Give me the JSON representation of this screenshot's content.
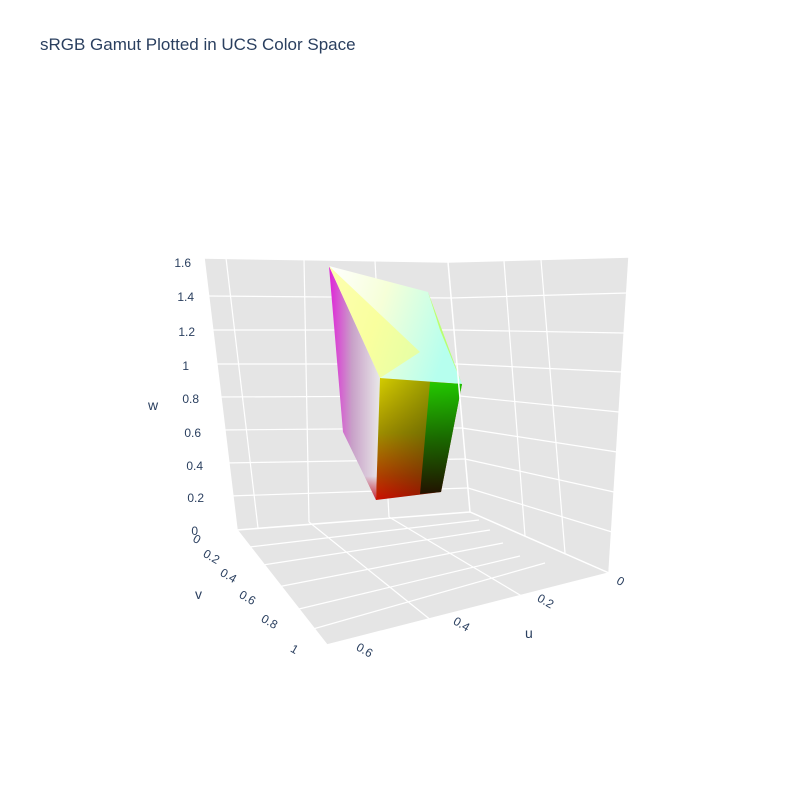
{
  "chart_data": {
    "type": "scatter3d-mesh",
    "title": "sRGB Gamut Plotted in UCS Color Space",
    "axes": {
      "u": {
        "label": "u",
        "ticks": [
          "0",
          "0.2",
          "0.4",
          "0.6"
        ],
        "range": [
          0,
          0.6
        ]
      },
      "v": {
        "label": "v",
        "ticks": [
          "0",
          "0.2",
          "0.4",
          "0.6",
          "0.8",
          "1"
        ],
        "range": [
          0,
          1
        ]
      },
      "w": {
        "label": "w",
        "ticks": [
          "0",
          "0.2",
          "0.4",
          "0.6",
          "0.8",
          "1",
          "1.2",
          "1.4",
          "1.6"
        ],
        "range": [
          0,
          1.6
        ]
      }
    },
    "grid": true,
    "background": "#e5e5e5",
    "gamut_vertices": [
      {
        "name": "black",
        "color": "#000000"
      },
      {
        "name": "red",
        "color": "#ff0000"
      },
      {
        "name": "green",
        "color": "#00ff00"
      },
      {
        "name": "blue",
        "color": "#0000ff"
      },
      {
        "name": "yellow",
        "color": "#ffff00"
      },
      {
        "name": "cyan",
        "color": "#00ffff"
      },
      {
        "name": "magenta",
        "color": "#ff00ff"
      },
      {
        "name": "white",
        "color": "#ffffff"
      }
    ]
  }
}
